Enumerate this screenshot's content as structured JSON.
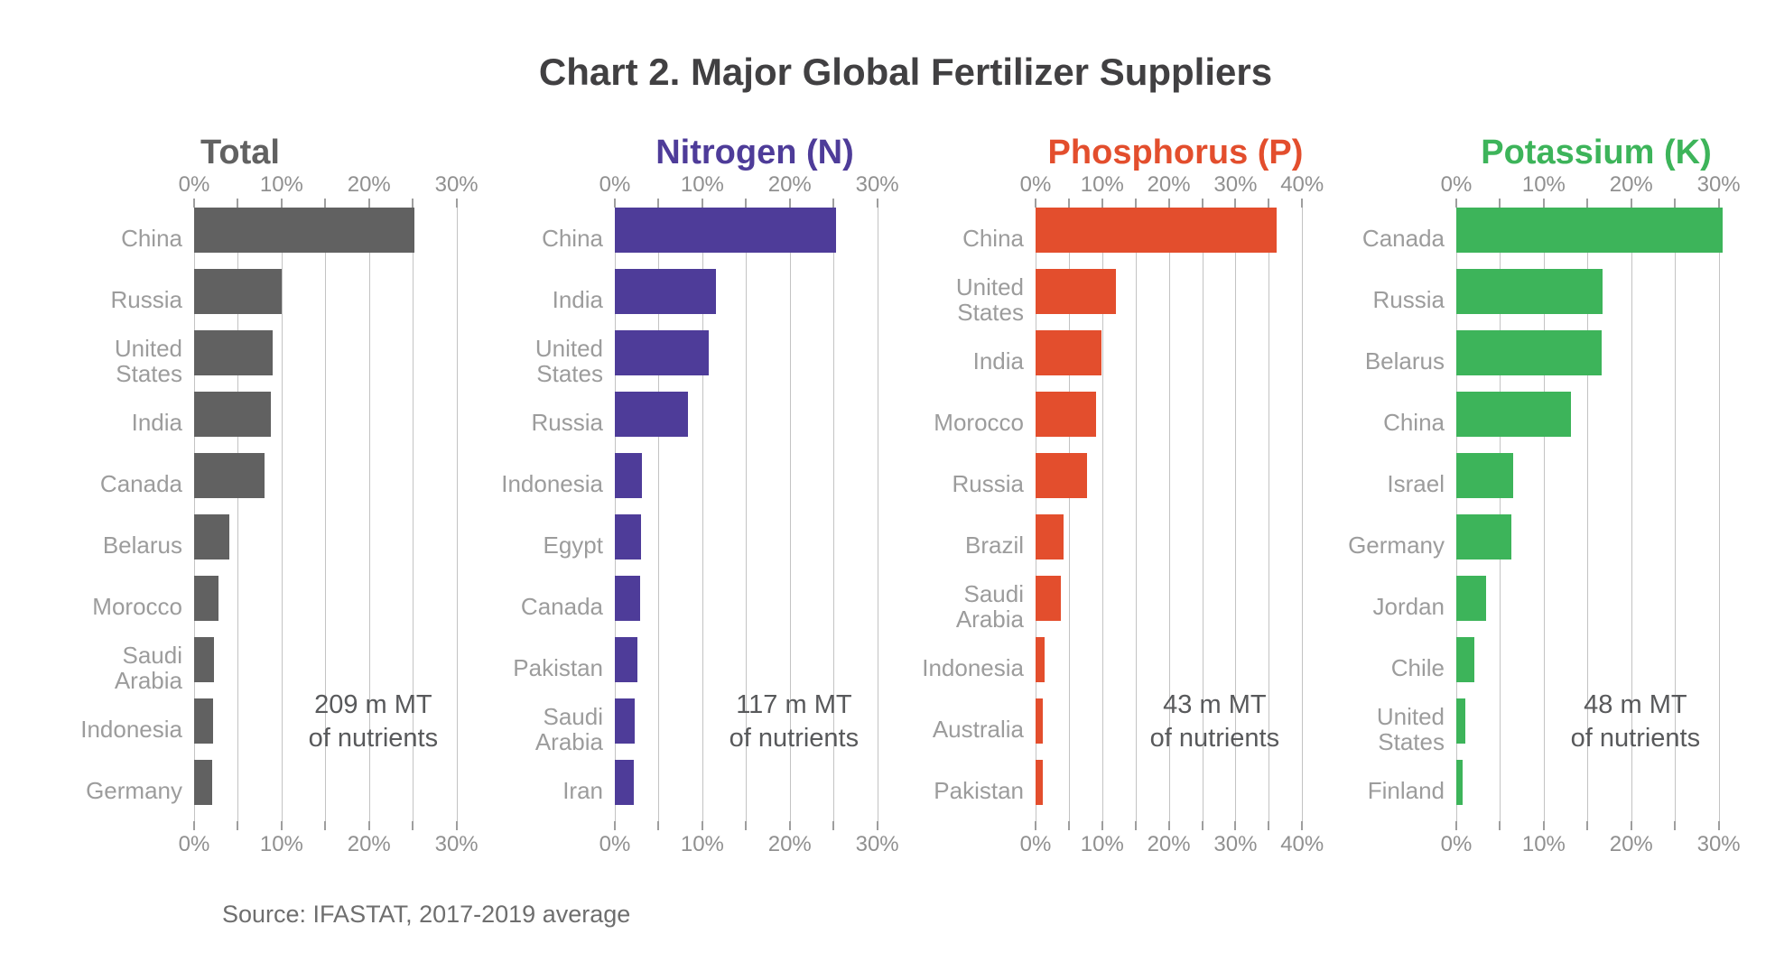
{
  "title": "Chart 2. Major Global Fertilizer Suppliers",
  "source": "Source: IFASTAT, 2017-2019 average",
  "chart_data": [
    {
      "type": "bar",
      "orientation": "horizontal",
      "title": "Total",
      "color": "#616161",
      "unit": "percent share",
      "categories": [
        "China",
        "Russia",
        "United States",
        "India",
        "Canada",
        "Belarus",
        "Morocco",
        "Saudi Arabia",
        "Indonesia",
        "Germany"
      ],
      "values": [
        25.2,
        10.0,
        9.0,
        8.8,
        8.0,
        4.0,
        2.8,
        2.3,
        2.2,
        2.1
      ],
      "xlim": [
        0,
        32
      ],
      "grid_step": 5,
      "label_step": 10,
      "x_tick_labels": [
        "0%",
        "10%",
        "20%",
        "30%"
      ],
      "grid": true,
      "annotation_lines": [
        "209 m MT",
        "of nutrients"
      ]
    },
    {
      "type": "bar",
      "orientation": "horizontal",
      "title": "Nitrogen (N)",
      "color": "#4E3C99",
      "unit": "percent share",
      "categories": [
        "China",
        "India",
        "United States",
        "Russia",
        "Indonesia",
        "Egypt",
        "Canada",
        "Pakistan",
        "Saudi Arabia",
        "Iran"
      ],
      "values": [
        25.3,
        11.6,
        10.7,
        8.4,
        3.1,
        3.0,
        2.9,
        2.6,
        2.3,
        2.2
      ],
      "xlim": [
        0,
        32
      ],
      "grid_step": 5,
      "label_step": 10,
      "x_tick_labels": [
        "0%",
        "10%",
        "20%",
        "30%"
      ],
      "grid": true,
      "annotation_lines": [
        "117 m MT",
        "of nutrients"
      ]
    },
    {
      "type": "bar",
      "orientation": "horizontal",
      "title": "Phosphorus (P)",
      "color": "#E34E2D",
      "unit": "percent share",
      "categories": [
        "China",
        "United States",
        "India",
        "Morocco",
        "Russia",
        "Brazil",
        "Saudi Arabia",
        "Indonesia",
        "Australia",
        "Pakistan"
      ],
      "values": [
        36.2,
        12.0,
        9.9,
        9.1,
        7.7,
        4.2,
        3.8,
        1.3,
        1.1,
        1.1
      ],
      "xlim": [
        0,
        42
      ],
      "grid_step": 5,
      "label_step": 10,
      "x_tick_labels": [
        "0%",
        "10%",
        "20%",
        "30%",
        "40%"
      ],
      "grid": true,
      "annotation_lines": [
        "43 m MT",
        "of nutrients"
      ]
    },
    {
      "type": "bar",
      "orientation": "horizontal",
      "title": "Potassium (K)",
      "color": "#3DB45A",
      "unit": "percent share",
      "categories": [
        "Canada",
        "Russia",
        "Belarus",
        "China",
        "Israel",
        "Germany",
        "Jordan",
        "Chile",
        "United States",
        "Finland"
      ],
      "values": [
        30.5,
        16.7,
        16.6,
        13.1,
        6.5,
        6.3,
        3.4,
        2.1,
        1.0,
        0.7
      ],
      "xlim": [
        0,
        32
      ],
      "grid_step": 5,
      "label_step": 10,
      "x_tick_labels": [
        "0%",
        "10%",
        "20%",
        "30%"
      ],
      "grid": true,
      "annotation_lines": [
        "48 m MT",
        "of nutrients"
      ]
    }
  ]
}
